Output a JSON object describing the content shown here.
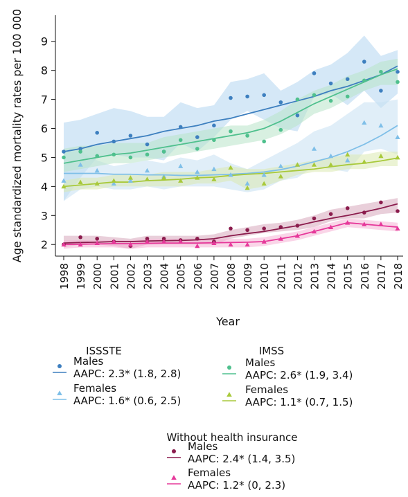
{
  "chart_data": {
    "type": "line",
    "xlabel": "Year",
    "ylabel": "Age standardized mortality rates per 100 000",
    "x": [
      1998,
      1999,
      2000,
      2001,
      2002,
      2003,
      2004,
      2005,
      2006,
      2007,
      2008,
      2009,
      2010,
      2011,
      2012,
      2013,
      2014,
      2015,
      2016,
      2017,
      2018
    ],
    "ylim": [
      1.6,
      9.9
    ],
    "yticks": [
      2,
      3,
      4,
      5,
      6,
      7,
      8,
      9
    ],
    "series": [
      {
        "group": "ISSSTE",
        "name": "Males",
        "aapc": "AAPC: 2.3* (1.8, 2.8)",
        "marker": "circle",
        "color": "#3d7fbf",
        "band_color": "#b3d6f0",
        "points": [
          5.2,
          5.3,
          5.85,
          5.55,
          5.75,
          5.45,
          5.2,
          6.05,
          5.7,
          6.1,
          7.05,
          7.1,
          7.15,
          6.9,
          6.45,
          7.9,
          7.55,
          7.7,
          8.3,
          7.3,
          7.95
        ],
        "fit": [
          5.2,
          5.3,
          5.45,
          5.55,
          5.65,
          5.75,
          5.9,
          6.0,
          6.1,
          6.25,
          6.35,
          6.5,
          6.65,
          6.8,
          6.95,
          7.1,
          7.3,
          7.45,
          7.65,
          7.85,
          8.15
        ],
        "band_lo": [
          3.5,
          4.3,
          5.0,
          5.1,
          5.0,
          5.0,
          4.9,
          5.5,
          5.2,
          5.7,
          6.3,
          6.6,
          6.3,
          6.0,
          5.9,
          7.1,
          7.2,
          6.8,
          7.3,
          6.7,
          7.2
        ],
        "band_hi": [
          6.2,
          6.3,
          6.5,
          6.7,
          6.6,
          6.4,
          6.4,
          6.9,
          6.7,
          6.8,
          7.6,
          7.7,
          7.9,
          7.3,
          7.6,
          8.0,
          8.2,
          8.6,
          9.2,
          8.5,
          8.7
        ]
      },
      {
        "group": "ISSSTE",
        "name": "Females",
        "aapc": "AAPC: 1.6* (0.6, 2.5)",
        "marker": "triangle",
        "color": "#7fbfe8",
        "band_color": "#c6e0f3",
        "points": [
          4.2,
          4.75,
          4.55,
          4.1,
          4.2,
          4.55,
          4.35,
          4.7,
          4.5,
          4.6,
          4.4,
          4.1,
          4.4,
          4.7,
          4.75,
          5.3,
          5.05,
          4.9,
          6.2,
          6.1,
          5.7
        ],
        "fit": [
          4.45,
          4.45,
          4.45,
          4.42,
          4.42,
          4.4,
          4.4,
          4.38,
          4.38,
          4.4,
          4.42,
          4.45,
          4.5,
          4.58,
          4.7,
          4.85,
          5.0,
          5.2,
          5.45,
          5.75,
          6.1
        ],
        "band_lo": [
          3.5,
          3.9,
          4.0,
          3.9,
          3.9,
          4.0,
          3.9,
          4.0,
          4.0,
          4.0,
          3.9,
          3.8,
          3.9,
          4.2,
          4.3,
          4.7,
          4.6,
          4.5,
          5.2,
          5.3,
          5.1
        ],
        "band_hi": [
          5.2,
          5.2,
          4.9,
          4.7,
          4.8,
          4.9,
          4.8,
          5.0,
          4.9,
          5.1,
          4.8,
          4.6,
          4.9,
          5.2,
          5.5,
          5.9,
          6.1,
          6.5,
          6.9,
          6.9,
          7.0
        ]
      },
      {
        "group": "IMSS",
        "name": "Males",
        "aapc": "AAPC: 2.6* (1.9, 3.4)",
        "marker": "circle",
        "color": "#4fc08d",
        "band_color": "#b8e3c8",
        "points": [
          5.0,
          5.2,
          5.05,
          5.1,
          5.0,
          5.1,
          5.2,
          5.6,
          5.3,
          5.6,
          5.9,
          5.75,
          5.55,
          5.95,
          7.0,
          7.15,
          6.95,
          7.1,
          7.65,
          7.95,
          7.6
        ],
        "fit": [
          4.8,
          4.9,
          5.0,
          5.1,
          5.15,
          5.25,
          5.35,
          5.45,
          5.55,
          5.65,
          5.75,
          5.85,
          6.0,
          6.25,
          6.55,
          6.85,
          7.1,
          7.35,
          7.6,
          7.85,
          8.05
        ],
        "band_lo": [
          4.5,
          4.6,
          4.7,
          4.8,
          4.8,
          4.9,
          5.0,
          5.1,
          5.2,
          5.3,
          5.4,
          5.5,
          5.6,
          5.8,
          6.1,
          6.5,
          6.7,
          7.0,
          7.3,
          7.5,
          7.5
        ],
        "band_hi": [
          5.3,
          5.4,
          5.4,
          5.5,
          5.5,
          5.5,
          5.7,
          5.8,
          5.9,
          6.0,
          6.1,
          6.1,
          6.3,
          6.6,
          7.0,
          7.3,
          7.5,
          7.8,
          8.0,
          8.3,
          8.4
        ]
      },
      {
        "group": "IMSS",
        "name": "Females",
        "aapc": "AAPC: 1.1* (0.7, 1.5)",
        "marker": "triangle",
        "color": "#a8c93a",
        "band_color": "#dbe9b0",
        "points": [
          4.0,
          4.15,
          4.1,
          4.2,
          4.3,
          4.25,
          4.3,
          4.2,
          4.3,
          4.25,
          4.65,
          3.95,
          4.1,
          4.35,
          4.75,
          4.75,
          4.75,
          5.1,
          4.85,
          5.05,
          5.0
        ],
        "fit": [
          4.0,
          4.05,
          4.1,
          4.15,
          4.15,
          4.2,
          4.22,
          4.25,
          4.3,
          4.32,
          4.38,
          4.42,
          4.45,
          4.5,
          4.55,
          4.6,
          4.68,
          4.75,
          4.8,
          4.88,
          4.98
        ],
        "band_lo": [
          3.8,
          3.9,
          3.9,
          4.0,
          4.0,
          4.0,
          4.0,
          4.0,
          4.1,
          4.1,
          4.2,
          3.9,
          4.0,
          4.2,
          4.4,
          4.5,
          4.5,
          4.6,
          4.6,
          4.7,
          4.7
        ],
        "band_hi": [
          4.2,
          4.3,
          4.3,
          4.4,
          4.4,
          4.4,
          4.5,
          4.5,
          4.5,
          4.6,
          4.7,
          4.6,
          4.6,
          4.7,
          4.8,
          4.9,
          5.0,
          5.1,
          5.1,
          5.2,
          5.2
        ]
      },
      {
        "group": "Without health insurance",
        "name": "Males",
        "aapc": "AAPC: 2.4* (1.4, 3.5)",
        "marker": "circle",
        "color": "#8b1c4d",
        "band_color": "#d7a8bc",
        "points": [
          2.0,
          2.25,
          2.2,
          2.1,
          1.95,
          2.2,
          2.2,
          2.15,
          2.2,
          2.1,
          2.55,
          2.5,
          2.55,
          2.6,
          2.65,
          2.9,
          3.05,
          3.25,
          3.1,
          3.45,
          3.15
        ],
        "fit": [
          2.05,
          2.07,
          2.08,
          2.1,
          2.1,
          2.12,
          2.13,
          2.14,
          2.16,
          2.2,
          2.3,
          2.38,
          2.45,
          2.55,
          2.65,
          2.78,
          2.9,
          3.0,
          3.12,
          3.25,
          3.4
        ],
        "band_lo": [
          1.9,
          2.0,
          2.0,
          1.95,
          1.85,
          2.0,
          2.0,
          2.0,
          2.0,
          2.0,
          2.2,
          2.3,
          2.4,
          2.45,
          2.5,
          2.6,
          2.8,
          2.9,
          2.9,
          3.05,
          3.1
        ],
        "band_hi": [
          2.3,
          2.3,
          2.3,
          2.25,
          2.2,
          2.3,
          2.3,
          2.3,
          2.3,
          2.35,
          2.5,
          2.6,
          2.7,
          2.75,
          2.85,
          3.0,
          3.2,
          3.3,
          3.4,
          3.5,
          3.6
        ]
      },
      {
        "group": "Without health insurance",
        "name": "Females",
        "aapc": "AAPC: 1.2* (0, 2.3)",
        "marker": "triangle",
        "color": "#e6389a",
        "band_color": "#f5b3d6",
        "points": [
          2.0,
          2.0,
          2.05,
          2.1,
          2.0,
          2.1,
          2.1,
          2.1,
          1.95,
          2.05,
          2.0,
          2.0,
          2.1,
          2.2,
          2.3,
          2.45,
          2.6,
          2.75,
          2.7,
          2.7,
          2.55
        ],
        "fit": [
          2.0,
          2.01,
          2.02,
          2.03,
          2.03,
          2.04,
          2.05,
          2.05,
          2.05,
          2.06,
          2.07,
          2.08,
          2.1,
          2.2,
          2.3,
          2.45,
          2.6,
          2.75,
          2.7,
          2.65,
          2.6
        ],
        "band_lo": [
          1.85,
          1.9,
          1.9,
          1.9,
          1.85,
          1.9,
          1.9,
          1.9,
          1.9,
          1.9,
          1.9,
          1.9,
          1.95,
          2.05,
          2.15,
          2.3,
          2.45,
          2.6,
          2.55,
          2.5,
          2.45
        ],
        "band_hi": [
          2.15,
          2.15,
          2.15,
          2.15,
          2.15,
          2.2,
          2.2,
          2.2,
          2.2,
          2.2,
          2.2,
          2.2,
          2.25,
          2.35,
          2.45,
          2.6,
          2.75,
          2.9,
          2.85,
          2.8,
          2.75
        ]
      }
    ]
  },
  "legend": {
    "groups": [
      {
        "title": "ISSSTE"
      },
      {
        "title": "IMSS"
      },
      {
        "title": "Without health insurance"
      }
    ]
  }
}
